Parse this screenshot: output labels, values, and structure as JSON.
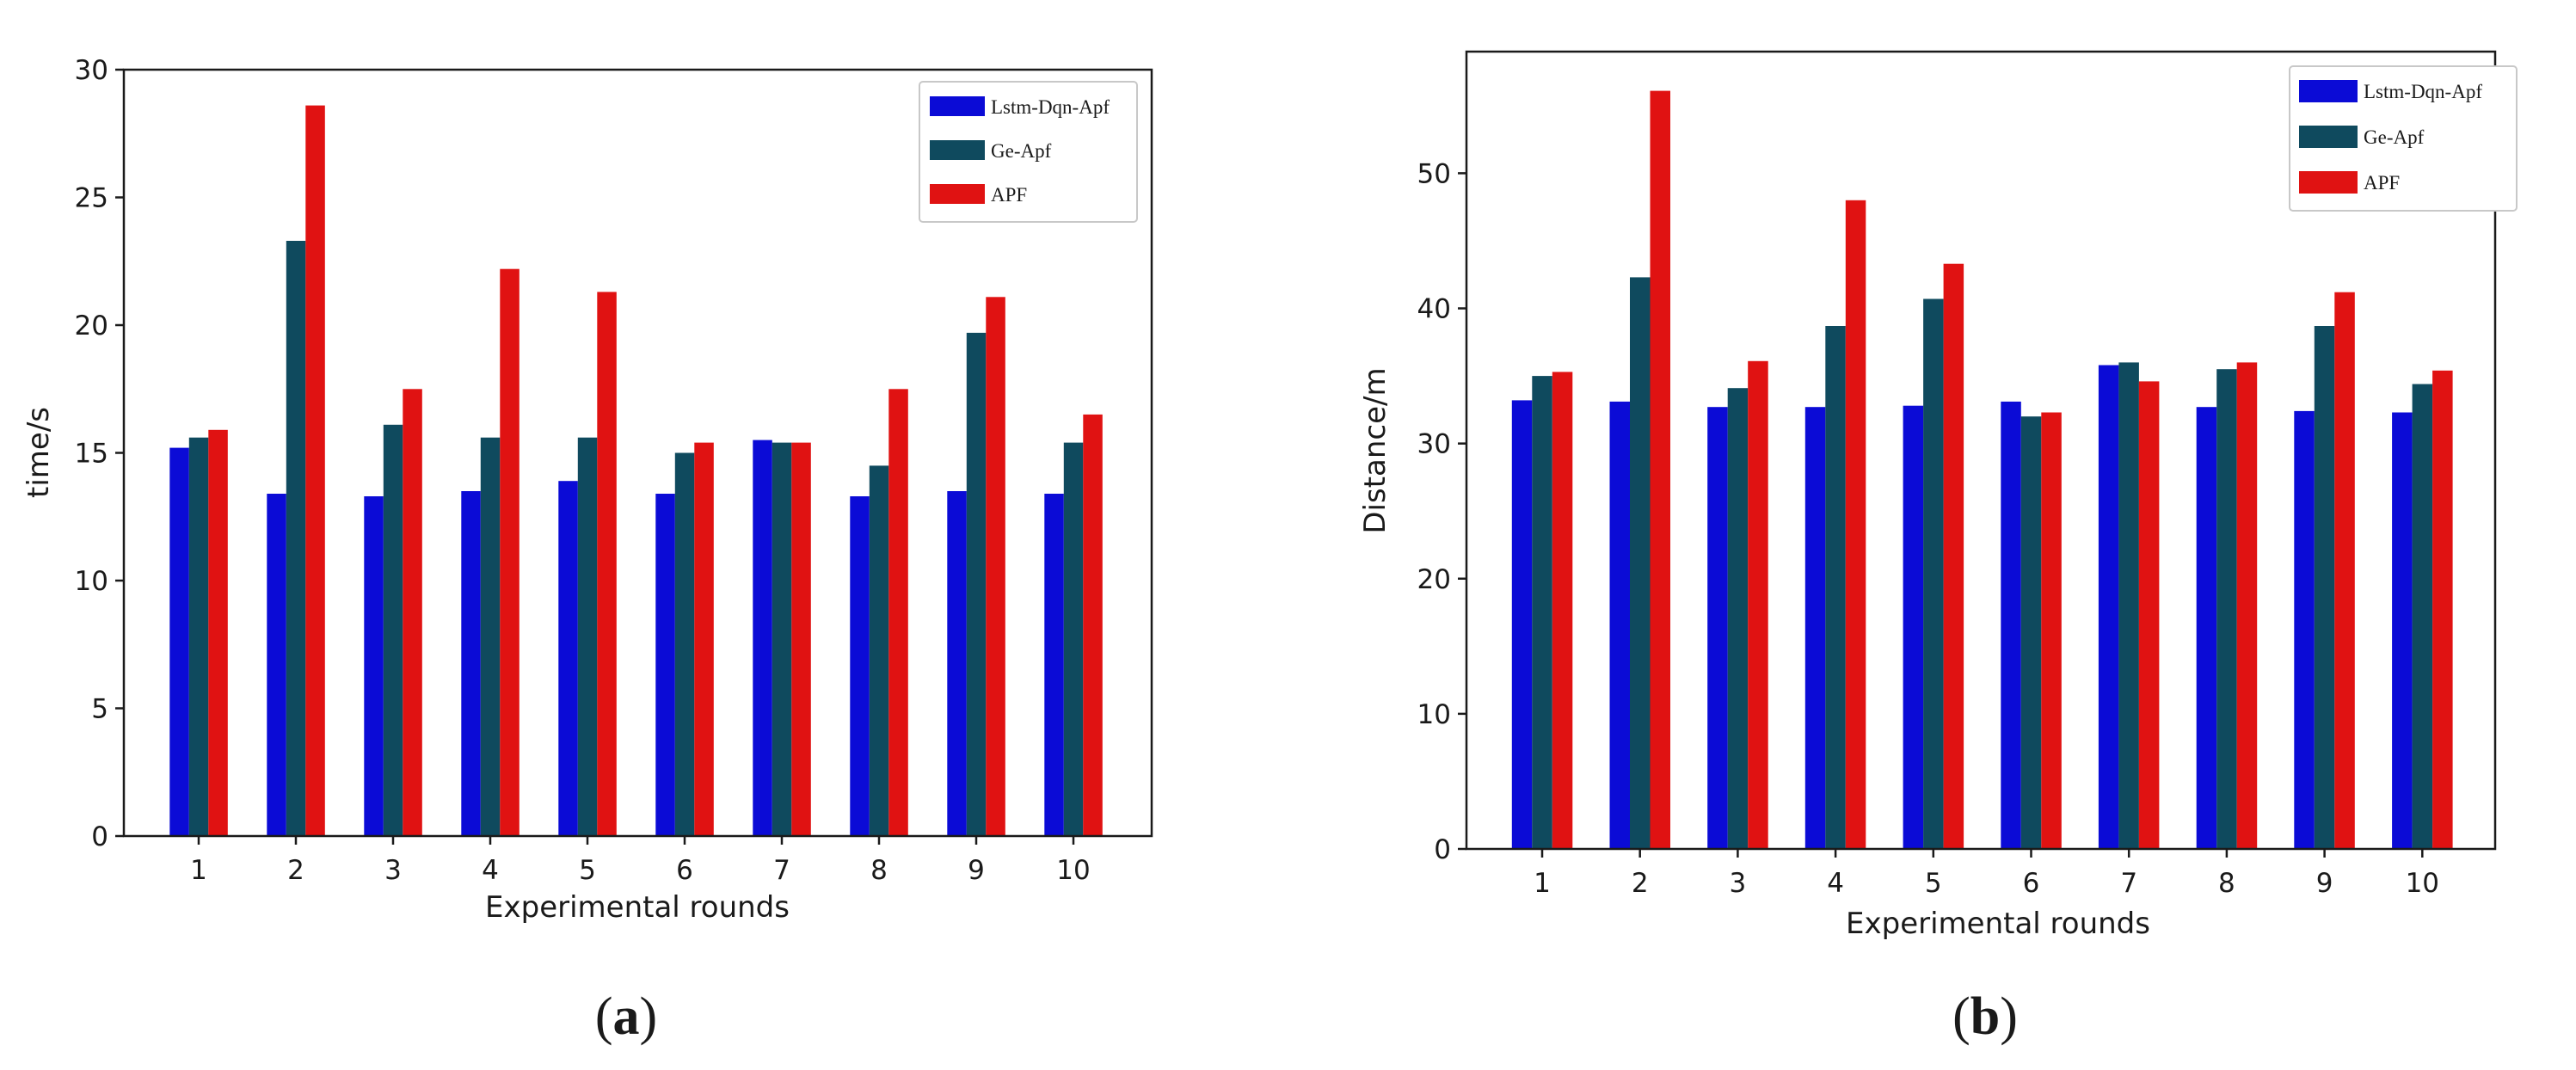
{
  "colors": {
    "series_1": "#0b0bd6",
    "series_2": "#0f4a5e",
    "series_3": "#e01212",
    "axis": "#1a1a1a",
    "legend_border": "#c8c8c8"
  },
  "chart_data": [
    {
      "type": "bar",
      "panel": "a",
      "caption_open": "(",
      "caption_letter": "a",
      "caption_close": ")",
      "xlabel": "Experimental rounds",
      "ylabel": "time/s",
      "ylim": [
        0,
        30
      ],
      "yticks": [
        0,
        5,
        10,
        15,
        20,
        25,
        30
      ],
      "categories": [
        "1",
        "2",
        "3",
        "4",
        "5",
        "6",
        "7",
        "8",
        "9",
        "10"
      ],
      "legend_position": "top-right",
      "series": [
        {
          "name": "Lstm-Dqn-Apf",
          "values": [
            15.2,
            13.4,
            13.3,
            13.5,
            13.9,
            13.4,
            15.5,
            13.3,
            13.5,
            13.4
          ]
        },
        {
          "name": "Ge-Apf",
          "values": [
            15.6,
            23.3,
            16.1,
            15.6,
            15.6,
            15.0,
            15.4,
            14.5,
            19.7,
            15.4
          ]
        },
        {
          "name": "APF",
          "values": [
            15.9,
            28.6,
            17.5,
            22.2,
            21.3,
            15.4,
            15.4,
            17.5,
            21.1,
            16.5
          ]
        }
      ]
    },
    {
      "type": "bar",
      "panel": "b",
      "caption_open": "(",
      "caption_letter": "b",
      "caption_close": ")",
      "xlabel": "Experimental rounds",
      "ylabel": "Distance/m",
      "ylim": [
        0,
        59
      ],
      "yticks": [
        0,
        10,
        20,
        30,
        40,
        50
      ],
      "categories": [
        "1",
        "2",
        "3",
        "4",
        "5",
        "6",
        "7",
        "8",
        "9",
        "10"
      ],
      "legend_position": "top-right",
      "series": [
        {
          "name": "Lstm-Dqn-Apf",
          "values": [
            33.2,
            33.1,
            32.7,
            32.7,
            32.8,
            33.1,
            35.8,
            32.7,
            32.4,
            32.3
          ]
        },
        {
          "name": "Ge-Apf",
          "values": [
            35.0,
            42.3,
            34.1,
            38.7,
            40.7,
            32.0,
            36.0,
            35.5,
            38.7,
            34.4
          ]
        },
        {
          "name": "APF",
          "values": [
            35.3,
            56.1,
            36.1,
            48.0,
            43.3,
            32.3,
            34.6,
            36.0,
            41.2,
            35.4
          ]
        }
      ]
    }
  ]
}
